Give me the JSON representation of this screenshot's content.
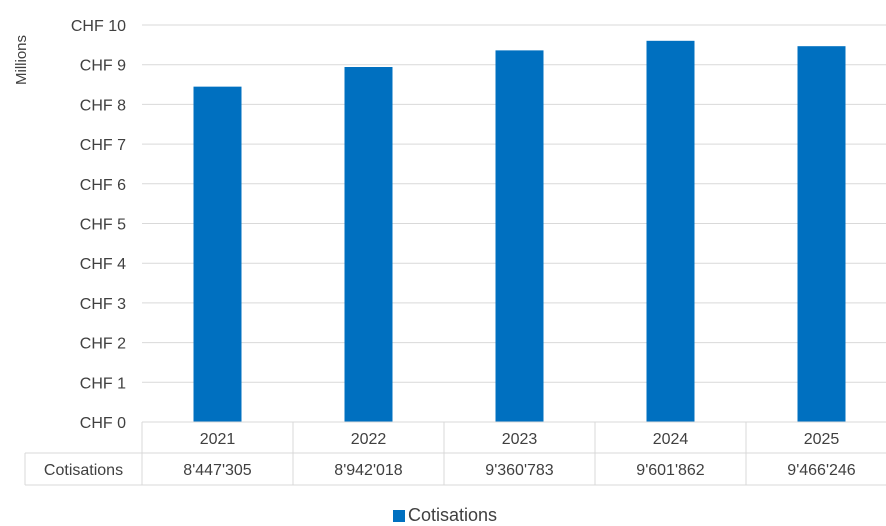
{
  "chart_data": {
    "type": "bar",
    "title": "",
    "ylabel": "Millions",
    "xlabel": "",
    "ylim": [
      0,
      10
    ],
    "y_ticks": [
      "CHF 0",
      "CHF 1",
      "CHF 2",
      "CHF 3",
      "CHF 4",
      "CHF 5",
      "CHF 6",
      "CHF 7",
      "CHF 8",
      "CHF 9",
      "CHF 10"
    ],
    "categories": [
      "2021",
      "2022",
      "2023",
      "2024",
      "2025"
    ],
    "series": [
      {
        "name": "Cotisations",
        "values": [
          8.447305,
          8.942018,
          9.360783,
          9.601862,
          9.466246
        ],
        "table_labels": [
          "8'447'305",
          "8'942'018",
          "9'360'783",
          "9'601'862",
          "9'466'246"
        ],
        "color": "#0070c0"
      }
    ],
    "grid": true,
    "data_table": true,
    "legend_position": "bottom"
  },
  "colors": {
    "bar": "#0070c0",
    "gridline": "#d9d9d9",
    "text": "#404040"
  }
}
